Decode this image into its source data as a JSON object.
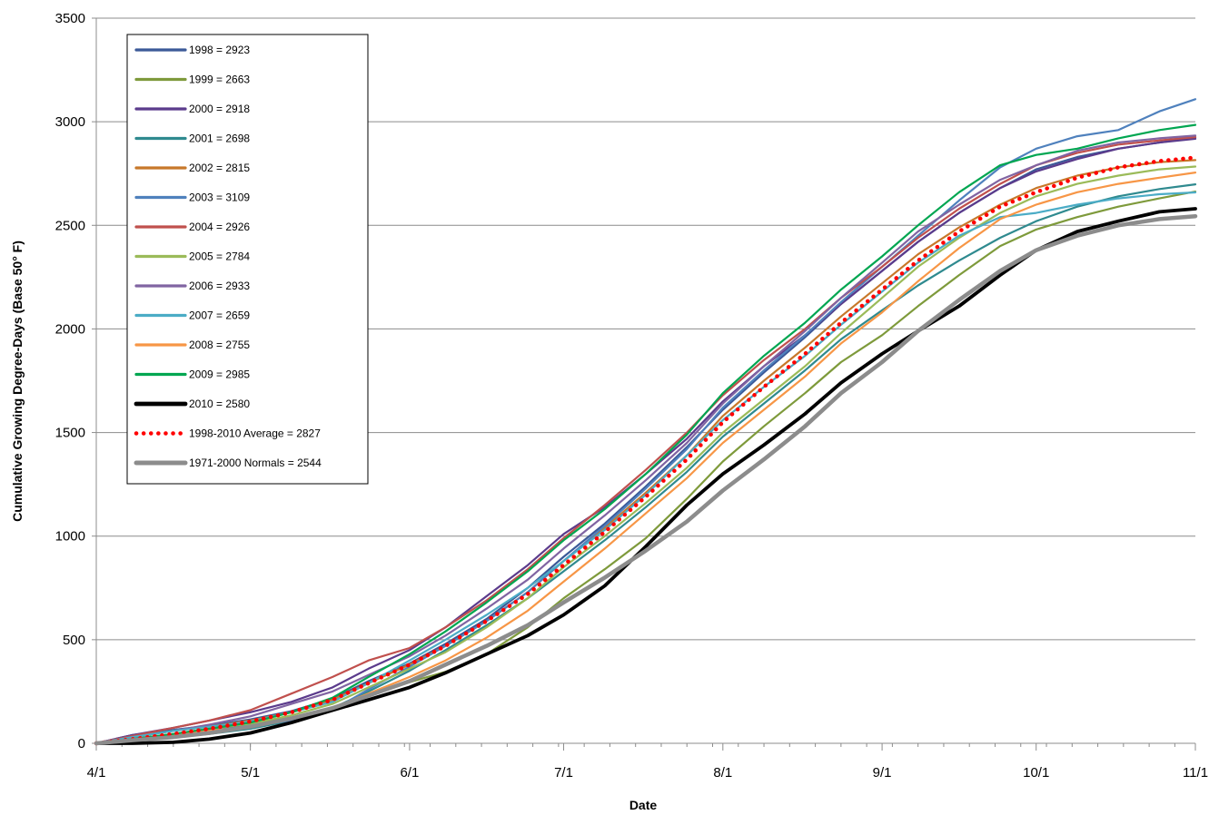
{
  "chart_data": {
    "type": "line",
    "title": "",
    "xlabel": "Date",
    "ylabel": "Cumulative Growing Degree-Days (Base 50° F)",
    "xlim": [
      0,
      214
    ],
    "ylim": [
      0,
      3500
    ],
    "grid": "horizontal",
    "legend_position": "top-left",
    "x_ticks": [
      {
        "day": 0,
        "label": "4/1"
      },
      {
        "day": 30,
        "label": "5/1"
      },
      {
        "day": 61,
        "label": "6/1"
      },
      {
        "day": 91,
        "label": "7/1"
      },
      {
        "day": 122,
        "label": "8/1"
      },
      {
        "day": 153,
        "label": "9/1"
      },
      {
        "day": 183,
        "label": "10/1"
      },
      {
        "day": 214,
        "label": "11/1"
      }
    ],
    "y_ticks": [
      0,
      500,
      1000,
      1500,
      2000,
      2500,
      3000,
      3500
    ],
    "x_points": [
      0,
      7,
      15,
      22,
      30,
      38,
      46,
      53,
      61,
      68,
      76,
      84,
      91,
      99,
      107,
      115,
      122,
      130,
      138,
      145,
      153,
      160,
      168,
      176,
      183,
      191,
      199,
      207,
      214
    ],
    "x_point_labels": [
      "4/1",
      "4/8",
      "4/16",
      "4/23",
      "5/1",
      "5/9",
      "5/17",
      "5/24",
      "6/1",
      "6/8",
      "6/16",
      "6/24",
      "7/1",
      "7/9",
      "7/17",
      "7/25",
      "8/1",
      "8/9",
      "8/17",
      "8/24",
      "9/1",
      "9/8",
      "9/16",
      "9/24",
      "10/1",
      "10/9",
      "10/17",
      "10/25",
      "11/1"
    ],
    "series": [
      {
        "name": "1998 = 2923",
        "color": "#3B5998",
        "width": 2.2,
        "style": "solid",
        "values": [
          0,
          40,
          65,
          85,
          115,
          155,
          215,
          300,
          385,
          480,
          600,
          750,
          900,
          1060,
          1240,
          1430,
          1610,
          1790,
          1960,
          2120,
          2280,
          2420,
          2560,
          2680,
          2770,
          2830,
          2870,
          2900,
          2923
        ]
      },
      {
        "name": "1999 = 2663",
        "color": "#7E9A3B",
        "width": 2.2,
        "style": "solid",
        "values": [
          0,
          20,
          45,
          65,
          90,
          125,
          170,
          230,
          295,
          345,
          430,
          560,
          700,
          840,
          990,
          1180,
          1360,
          1530,
          1690,
          1840,
          1970,
          2110,
          2260,
          2400,
          2480,
          2540,
          2590,
          2630,
          2663
        ]
      },
      {
        "name": "2000 = 2918",
        "color": "#5B3B8C",
        "width": 2.2,
        "style": "solid",
        "values": [
          0,
          40,
          75,
          110,
          150,
          200,
          270,
          360,
          450,
          560,
          710,
          860,
          1010,
          1140,
          1300,
          1470,
          1650,
          1820,
          1970,
          2120,
          2280,
          2420,
          2560,
          2680,
          2760,
          2820,
          2870,
          2900,
          2918
        ]
      },
      {
        "name": "2001 = 2698",
        "color": "#2F8A8F",
        "width": 2.2,
        "style": "solid",
        "values": [
          0,
          10,
          30,
          45,
          70,
          110,
          170,
          250,
          350,
          450,
          570,
          700,
          830,
          980,
          1140,
          1310,
          1480,
          1640,
          1800,
          1950,
          2090,
          2210,
          2330,
          2440,
          2520,
          2590,
          2640,
          2675,
          2698
        ]
      },
      {
        "name": "2002 = 2815",
        "color": "#C7782A",
        "width": 2.2,
        "style": "solid",
        "values": [
          0,
          30,
          60,
          80,
          110,
          150,
          210,
          290,
          380,
          470,
          590,
          730,
          880,
          1040,
          1210,
          1390,
          1580,
          1750,
          1910,
          2060,
          2220,
          2360,
          2490,
          2600,
          2680,
          2740,
          2780,
          2805,
          2815
        ]
      },
      {
        "name": "2003 = 3109",
        "color": "#4F81BD",
        "width": 2.2,
        "style": "solid",
        "values": [
          0,
          20,
          45,
          60,
          85,
          110,
          160,
          260,
          370,
          470,
          590,
          730,
          880,
          1050,
          1230,
          1420,
          1620,
          1800,
          1970,
          2130,
          2300,
          2450,
          2620,
          2780,
          2870,
          2930,
          2960,
          3050,
          3109
        ]
      },
      {
        "name": "2004 = 2926",
        "color": "#C0504D",
        "width": 2.2,
        "style": "solid",
        "values": [
          0,
          35,
          75,
          110,
          160,
          240,
          320,
          400,
          460,
          560,
          690,
          840,
          990,
          1150,
          1320,
          1500,
          1680,
          1850,
          2000,
          2150,
          2300,
          2440,
          2580,
          2700,
          2790,
          2850,
          2890,
          2910,
          2926
        ]
      },
      {
        "name": "2005 = 2784",
        "color": "#9BBB59",
        "width": 2.2,
        "style": "solid",
        "values": [
          0,
          20,
          45,
          70,
          95,
          135,
          190,
          270,
          360,
          440,
          560,
          700,
          850,
          1000,
          1160,
          1330,
          1500,
          1660,
          1820,
          1980,
          2150,
          2300,
          2440,
          2560,
          2640,
          2700,
          2740,
          2770,
          2784
        ]
      },
      {
        "name": "2006 = 2933",
        "color": "#8064A2",
        "width": 2.2,
        "style": "solid",
        "values": [
          0,
          30,
          60,
          90,
          130,
          190,
          250,
          330,
          420,
          520,
          650,
          790,
          940,
          1100,
          1270,
          1450,
          1640,
          1820,
          1990,
          2150,
          2320,
          2470,
          2600,
          2720,
          2790,
          2860,
          2900,
          2920,
          2933
        ]
      },
      {
        "name": "2007 = 2659",
        "color": "#4BACC6",
        "width": 2.2,
        "style": "solid",
        "values": [
          0,
          30,
          60,
          80,
          105,
          150,
          200,
          290,
          400,
          500,
          620,
          750,
          880,
          1030,
          1200,
          1390,
          1560,
          1720,
          1870,
          2020,
          2180,
          2320,
          2450,
          2540,
          2560,
          2600,
          2630,
          2650,
          2659
        ]
      },
      {
        "name": "2008 = 2755",
        "color": "#F79646",
        "width": 2.2,
        "style": "solid",
        "values": [
          0,
          15,
          40,
          60,
          80,
          120,
          170,
          240,
          320,
          400,
          510,
          640,
          780,
          940,
          1110,
          1280,
          1450,
          1610,
          1770,
          1930,
          2080,
          2230,
          2390,
          2530,
          2600,
          2660,
          2700,
          2730,
          2755
        ]
      },
      {
        "name": "2009 = 2985",
        "color": "#00A651",
        "width": 2.2,
        "style": "solid",
        "values": [
          0,
          20,
          45,
          70,
          100,
          150,
          220,
          320,
          430,
          540,
          680,
          830,
          980,
          1130,
          1300,
          1490,
          1690,
          1870,
          2030,
          2190,
          2350,
          2500,
          2660,
          2790,
          2840,
          2870,
          2920,
          2960,
          2985
        ]
      },
      {
        "name": "2010 = 2580",
        "color": "#000000",
        "width": 3.8,
        "style": "solid",
        "values": [
          0,
          0,
          5,
          20,
          50,
          100,
          160,
          210,
          270,
          340,
          430,
          520,
          620,
          760,
          950,
          1150,
          1300,
          1440,
          1590,
          1740,
          1880,
          1990,
          2110,
          2260,
          2380,
          2470,
          2520,
          2565,
          2580
        ]
      },
      {
        "name": "1998-2010 Average = 2827",
        "color": "#FF0000",
        "width": 4,
        "style": "dotted",
        "values": [
          0,
          20,
          45,
          70,
          105,
          150,
          210,
          290,
          380,
          470,
          590,
          720,
          860,
          1020,
          1190,
          1370,
          1550,
          1720,
          1880,
          2030,
          2190,
          2330,
          2470,
          2590,
          2660,
          2730,
          2780,
          2810,
          2827
        ]
      },
      {
        "name": "1971-2000 Normals = 2544",
        "color": "#8C8C8C",
        "width": 4.5,
        "style": "solid",
        "values": [
          0,
          15,
          30,
          50,
          80,
          120,
          170,
          230,
          300,
          380,
          470,
          570,
          680,
          800,
          930,
          1070,
          1220,
          1370,
          1530,
          1690,
          1840,
          1990,
          2140,
          2280,
          2380,
          2450,
          2500,
          2530,
          2544
        ]
      }
    ]
  }
}
